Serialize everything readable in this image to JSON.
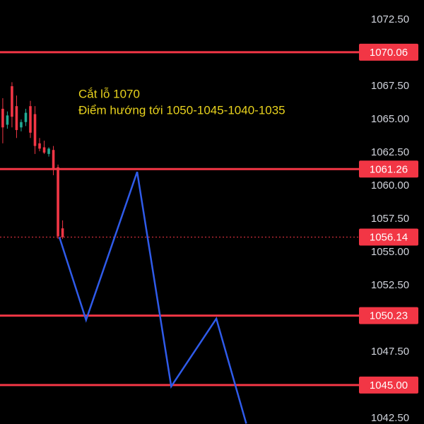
{
  "chart_data": {
    "type": "candlestick",
    "annotations": [
      "Cắt lỗ 1070",
      "Điểm hướng tới 1050-1045-1040-1035"
    ],
    "annotation_color": "#e8d21d",
    "xlim": [
      -0.6,
      77.7
    ],
    "ylim": [
      1042.07,
      1073.99
    ],
    "yticks": [
      {
        "value": 1072.5,
        "label": "1072.50"
      },
      {
        "value": 1067.5,
        "label": "1067.50"
      },
      {
        "value": 1065,
        "label": "1065.00"
      },
      {
        "value": 1062.5,
        "label": "1062.50"
      },
      {
        "value": 1060,
        "label": "1060.00"
      },
      {
        "value": 1057.5,
        "label": "1057.50"
      },
      {
        "value": 1055,
        "label": "1055.00"
      },
      {
        "value": 1052.5,
        "label": "1052.50"
      },
      {
        "value": 1047.5,
        "label": "1047.50"
      },
      {
        "value": 1042.5,
        "label": "1042.50"
      }
    ],
    "candles": {
      "up_color": "#22ab94",
      "down_color": "#f23645",
      "x": [
        0,
        1,
        2,
        3,
        4,
        5,
        6,
        7,
        8,
        9,
        10,
        11,
        12,
        13
      ],
      "open": [
        1065.8,
        1064.6,
        1067.5,
        1066.0,
        1064.4,
        1064.8,
        1066.0,
        1065.4,
        1063.2,
        1062.9,
        1062.4,
        1062.7,
        1061.4,
        1056.8
      ],
      "high": [
        1066.6,
        1065.6,
        1067.8,
        1066.8,
        1065.0,
        1065.8,
        1066.4,
        1066.0,
        1063.6,
        1063.4,
        1062.9,
        1063.0,
        1061.6,
        1057.4
      ],
      "low": [
        1063.2,
        1064.3,
        1064.4,
        1063.6,
        1064.1,
        1064.5,
        1063.6,
        1062.4,
        1062.6,
        1062.4,
        1062.2,
        1060.8,
        1056.0,
        1056.0
      ],
      "close": [
        1064.4,
        1065.3,
        1065.2,
        1064.2,
        1064.8,
        1065.5,
        1064.0,
        1063.0,
        1062.8,
        1062.5,
        1062.8,
        1061.2,
        1056.2,
        1056.14
      ]
    },
    "hlines": {
      "color": "#f23645",
      "values": [
        1070.06,
        1061.26,
        1050.23,
        1045
      ],
      "value_labels": [
        "1070.06",
        "1061.26",
        "1050.23",
        "1045.00"
      ]
    },
    "current_price": {
      "value": 1056.14,
      "color": "#f23645"
    },
    "projection": {
      "color": "#2f5bea",
      "x": [
        12.3,
        18.1,
        29.2,
        36.6,
        46.4,
        52.9
      ],
      "values": [
        1056.14,
        1049.9,
        1061.05,
        1044.9,
        1050.0,
        1042.1
      ]
    }
  }
}
